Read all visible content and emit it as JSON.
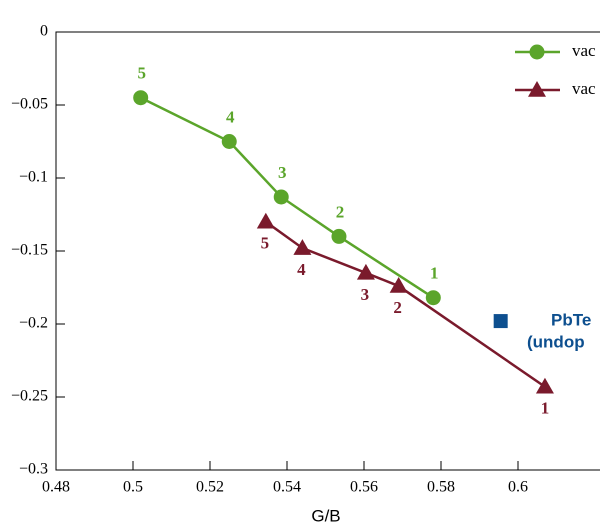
{
  "chart_data": {
    "type": "line",
    "x_label": "G/B",
    "xlim": [
      0.48,
      0.62
    ],
    "ylim": [
      -0.3,
      0
    ],
    "xticks": [
      0.48,
      0.5,
      0.52,
      0.54,
      0.56,
      0.58,
      0.6
    ],
    "yticks": [
      {
        "value": -0.3,
        "label": "−0.3"
      },
      {
        "value": -0.25,
        "label": "−0.25"
      },
      {
        "value": -0.2,
        "label": "−0.2"
      },
      {
        "value": -0.15,
        "label": "−0.15"
      },
      {
        "value": -0.1,
        "label": "−0.1"
      },
      {
        "value": -0.05,
        "label": "−0.05"
      },
      0
    ],
    "series": [
      {
        "name": "vac",
        "color": "#5ba52b",
        "marker": "circle",
        "label_position": "above",
        "x": [
          0.502,
          0.525,
          0.5385,
          0.5535,
          0.578
        ],
        "values": [
          -0.045,
          -0.075,
          -0.113,
          -0.14,
          -0.182
        ],
        "point_labels": [
          "5",
          "4",
          "3",
          "2",
          "1"
        ]
      },
      {
        "name": "vac",
        "color": "#7a1a2c",
        "marker": "triangle",
        "label_position": "below",
        "x": [
          0.5345,
          0.544,
          0.5605,
          0.569,
          0.607
        ],
        "values": [
          -0.13,
          -0.148,
          -0.165,
          -0.174,
          -0.243
        ],
        "point_labels": [
          "5",
          "4",
          "3",
          "2",
          "1"
        ]
      }
    ],
    "annotation": {
      "x": 0.5955,
      "y": -0.198,
      "color": "#0d4f8f",
      "lines": [
        "PbTe",
        "(undop"
      ]
    }
  }
}
